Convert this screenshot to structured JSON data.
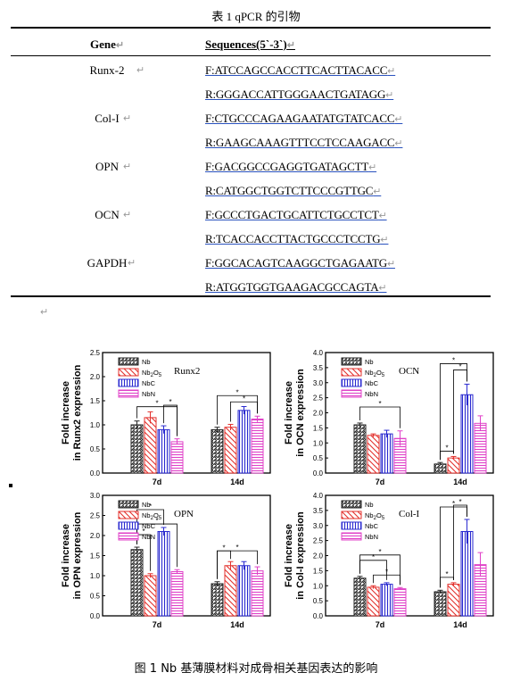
{
  "table": {
    "title": "表 1 qPCR 的引物",
    "head": {
      "gene": "Gene",
      "seq": "Sequences(5`-3`)"
    },
    "rows": [
      {
        "gene": "Runx-2",
        "f": "F:ATCCAGCCACCTTCACTTACACC",
        "r": "R:GGGACCATTGGGAACTGATAGG"
      },
      {
        "gene": "Col-I",
        "f": "F:CTGCCCAGAAGAATATGTATCACC",
        "r": "R:GAAGCAAAGTTTCCTCCAAGACC"
      },
      {
        "gene": "OPN",
        "f": "F:GACGGCCGAGGTGATAGCTT",
        "r": "R:CATGGCTGGTCTTCCCGTTGC"
      },
      {
        "gene": "OCN",
        "f": "F:GCCCTGACTGCATTCTGCCTCT",
        "r": "R:TCACCACCTTACTGCCCTCCTG"
      },
      {
        "gene": "GAPDH",
        "f": "F:GGCACAGTCAAGGCTGAGAATG",
        "r": "R:ATGGTGGTGAAGACGCCAGTA"
      }
    ]
  },
  "figure": {
    "caption": "图 1 Nb 基薄膜材料对成骨相关基因表达的影响",
    "legend": [
      "Nb",
      "Nb2O5",
      "NbC",
      "NbN"
    ],
    "colors": {
      "Nb": "#222222",
      "Nb2O5": "#e3312d",
      "NbC": "#2a2ad0",
      "NbN": "#e041c8"
    }
  },
  "chart_data": [
    {
      "type": "bar",
      "title": "Runx2",
      "ylabel": "Fold increase in Runx2 expression",
      "categories": [
        "7d",
        "14d"
      ],
      "ylim": [
        0,
        2.5
      ],
      "yticks": [
        "0.0",
        "0.5",
        "1.0",
        "1.5",
        "2.0",
        "2.5"
      ],
      "series": [
        {
          "name": "Nb",
          "values": [
            1.0,
            0.9
          ]
        },
        {
          "name": "Nb2O5",
          "values": [
            1.15,
            0.95
          ]
        },
        {
          "name": "NbC",
          "values": [
            0.9,
            1.3
          ]
        },
        {
          "name": "NbN",
          "values": [
            0.65,
            1.12
          ]
        }
      ],
      "errors": [
        [
          0.08,
          0.05
        ],
        [
          0.12,
          0.06
        ],
        [
          0.08,
          0.08
        ],
        [
          0.06,
          0.06
        ]
      ]
    },
    {
      "type": "bar",
      "title": "OCN",
      "ylabel": "Fold increase in OCN expression",
      "categories": [
        "7d",
        "14d"
      ],
      "ylim": [
        0,
        4.0
      ],
      "yticks": [
        "0.0",
        "0.5",
        "1.0",
        "1.5",
        "2.0",
        "2.5",
        "3.0",
        "3.5",
        "4.0"
      ],
      "series": [
        {
          "name": "Nb",
          "values": [
            1.6,
            0.3
          ]
        },
        {
          "name": "Nb2O5",
          "values": [
            1.25,
            0.5
          ]
        },
        {
          "name": "NbC",
          "values": [
            1.3,
            2.6
          ]
        },
        {
          "name": "NbN",
          "values": [
            1.15,
            1.65
          ]
        }
      ],
      "errors": [
        [
          0.06,
          0.05
        ],
        [
          0.05,
          0.05
        ],
        [
          0.12,
          0.35
        ],
        [
          0.25,
          0.25
        ]
      ]
    },
    {
      "type": "bar",
      "title": "OPN",
      "ylabel": "Fold increase in OPN expression",
      "categories": [
        "7d",
        "14d"
      ],
      "ylim": [
        0,
        3.0
      ],
      "yticks": [
        "0.0",
        "0.5",
        "1.0",
        "1.5",
        "2.0",
        "2.5",
        "3.0"
      ],
      "series": [
        {
          "name": "Nb",
          "values": [
            1.65,
            0.8
          ]
        },
        {
          "name": "Nb2O5",
          "values": [
            1.0,
            1.25
          ]
        },
        {
          "name": "NbC",
          "values": [
            2.1,
            1.25
          ]
        },
        {
          "name": "NbN",
          "values": [
            1.1,
            1.12
          ]
        }
      ],
      "errors": [
        [
          0.06,
          0.05
        ],
        [
          0.05,
          0.1
        ],
        [
          0.1,
          0.1
        ],
        [
          0.05,
          0.1
        ]
      ]
    },
    {
      "type": "bar",
      "title": "Col-I",
      "ylabel": "Fold increase in Col-I expression",
      "categories": [
        "7d",
        "14d"
      ],
      "ylim": [
        0,
        4.0
      ],
      "yticks": [
        "0.0",
        "0.5",
        "1.0",
        "1.5",
        "2.0",
        "2.5",
        "3.0",
        "3.5",
        "4.0"
      ],
      "series": [
        {
          "name": "Nb",
          "values": [
            1.25,
            0.8
          ]
        },
        {
          "name": "Nb2O5",
          "values": [
            0.95,
            1.05
          ]
        },
        {
          "name": "NbC",
          "values": [
            1.05,
            2.8
          ]
        },
        {
          "name": "NbN",
          "values": [
            0.9,
            1.7
          ]
        }
      ],
      "errors": [
        [
          0.06,
          0.05
        ],
        [
          0.05,
          0.05
        ],
        [
          0.05,
          0.4
        ],
        [
          0.04,
          0.4
        ]
      ]
    }
  ]
}
